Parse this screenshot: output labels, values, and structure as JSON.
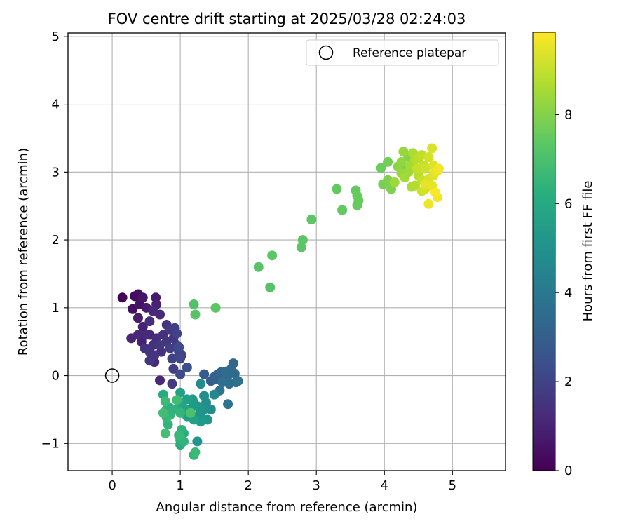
{
  "chart_data": {
    "type": "scatter",
    "title": "FOV centre drift starting at 2025/03/28 02:24:03",
    "xlabel": "Angular distance from reference (arcmin)",
    "ylabel": "Rotation from reference (arcmin)",
    "xlim": [
      -0.65,
      5.78
    ],
    "ylim": [
      -1.4,
      5.05
    ],
    "xticks": [
      "0",
      "1",
      "2",
      "3",
      "4",
      "5"
    ],
    "yticks": [
      "−1",
      "0",
      "1",
      "2",
      "3",
      "4",
      "5"
    ],
    "grid": true,
    "legend": {
      "position": "top-right",
      "entries": [
        "Reference platepar"
      ]
    },
    "reference_point": {
      "x": 0,
      "y": 0
    },
    "colorbar": {
      "label": "Hours from first FF file",
      "colormap": "viridis",
      "range": [
        0,
        9.85
      ],
      "ticks": [
        "0",
        "2",
        "4",
        "6",
        "8"
      ]
    },
    "points": [
      {
        "x": 0.15,
        "y": 1.15,
        "h": 0.1
      },
      {
        "x": 0.33,
        "y": 1.17,
        "h": 0.3
      },
      {
        "x": 0.38,
        "y": 1.2,
        "h": 0.4
      },
      {
        "x": 0.3,
        "y": 0.98,
        "h": 0.4
      },
      {
        "x": 0.4,
        "y": 1.05,
        "h": 0.5
      },
      {
        "x": 0.45,
        "y": 1.15,
        "h": 0.6
      },
      {
        "x": 0.5,
        "y": 1.0,
        "h": 0.7
      },
      {
        "x": 0.38,
        "y": 0.85,
        "h": 0.8
      },
      {
        "x": 0.45,
        "y": 0.72,
        "h": 0.9
      },
      {
        "x": 0.55,
        "y": 0.6,
        "h": 1.0
      },
      {
        "x": 0.6,
        "y": 0.95,
        "h": 1.1
      },
      {
        "x": 0.65,
        "y": 1.05,
        "h": 0.9
      },
      {
        "x": 0.64,
        "y": 1.15,
        "h": 0.7
      },
      {
        "x": 0.7,
        "y": 0.9,
        "h": 1.2
      },
      {
        "x": 0.55,
        "y": 0.8,
        "h": 1.3
      },
      {
        "x": 0.5,
        "y": 0.6,
        "h": 1.2
      },
      {
        "x": 0.48,
        "y": 0.4,
        "h": 1.4
      },
      {
        "x": 0.55,
        "y": 0.35,
        "h": 1.5
      },
      {
        "x": 0.6,
        "y": 0.45,
        "h": 1.4
      },
      {
        "x": 0.55,
        "y": 0.22,
        "h": 1.6
      },
      {
        "x": 0.62,
        "y": 0.3,
        "h": 1.5
      },
      {
        "x": 0.7,
        "y": 0.45,
        "h": 1.6
      },
      {
        "x": 0.65,
        "y": 0.55,
        "h": 1.3
      },
      {
        "x": 0.75,
        "y": 0.6,
        "h": 1.4
      },
      {
        "x": 0.8,
        "y": 0.75,
        "h": 1.5
      },
      {
        "x": 0.85,
        "y": 0.68,
        "h": 1.7
      },
      {
        "x": 0.9,
        "y": 0.55,
        "h": 1.6
      },
      {
        "x": 0.92,
        "y": 0.7,
        "h": 1.8
      },
      {
        "x": 0.95,
        "y": 0.62,
        "h": 1.9
      },
      {
        "x": 0.85,
        "y": 0.4,
        "h": 1.8
      },
      {
        "x": 0.88,
        "y": 0.25,
        "h": 1.9
      },
      {
        "x": 0.95,
        "y": 0.45,
        "h": 1.7
      },
      {
        "x": 0.98,
        "y": 0.35,
        "h": 2.0
      },
      {
        "x": 1.0,
        "y": 0.25,
        "h": 2.1
      },
      {
        "x": 1.02,
        "y": 0.3,
        "h": 1.9
      },
      {
        "x": 0.8,
        "y": 0.5,
        "h": 1.6
      },
      {
        "x": 0.72,
        "y": 0.35,
        "h": 1.4
      },
      {
        "x": 0.62,
        "y": 0.2,
        "h": 1.2
      },
      {
        "x": 0.28,
        "y": 0.55,
        "h": 1.0
      },
      {
        "x": 0.38,
        "y": 0.6,
        "h": 1.1
      },
      {
        "x": 0.43,
        "y": 0.5,
        "h": 0.9
      },
      {
        "x": 0.9,
        "y": 0.1,
        "h": 1.8
      },
      {
        "x": 0.7,
        "y": -0.07,
        "h": 1.1
      },
      {
        "x": 0.88,
        "y": -0.12,
        "h": 1.7
      },
      {
        "x": 0.98,
        "y": 0.42,
        "h": 2.2
      },
      {
        "x": 1.0,
        "y": 0.02,
        "h": 2.2
      },
      {
        "x": 1.1,
        "y": 0.12,
        "h": 2.4
      },
      {
        "x": 1.35,
        "y": 0.02,
        "h": 2.8
      },
      {
        "x": 1.45,
        "y": -0.08,
        "h": 2.9
      },
      {
        "x": 1.5,
        "y": -0.02,
        "h": 3.0
      },
      {
        "x": 1.55,
        "y": 0.02,
        "h": 3.1
      },
      {
        "x": 1.6,
        "y": 0.05,
        "h": 3.2
      },
      {
        "x": 1.65,
        "y": -0.05,
        "h": 3.3
      },
      {
        "x": 1.7,
        "y": 0.0,
        "h": 3.4
      },
      {
        "x": 1.72,
        "y": -0.12,
        "h": 3.5
      },
      {
        "x": 1.75,
        "y": 0.1,
        "h": 3.3
      },
      {
        "x": 1.78,
        "y": 0.18,
        "h": 3.2
      },
      {
        "x": 1.8,
        "y": 0.03,
        "h": 3.4
      },
      {
        "x": 1.82,
        "y": -0.1,
        "h": 3.5
      },
      {
        "x": 1.85,
        "y": -0.08,
        "h": 3.6
      },
      {
        "x": 1.7,
        "y": -0.42,
        "h": 3.8
      },
      {
        "x": 1.58,
        "y": -0.22,
        "h": 3.7
      },
      {
        "x": 1.62,
        "y": -0.1,
        "h": 3.6
      },
      {
        "x": 1.67,
        "y": 0.06,
        "h": 3.5
      },
      {
        "x": 1.52,
        "y": -0.05,
        "h": 3.1
      },
      {
        "x": 1.3,
        "y": -0.12,
        "h": 4.7
      },
      {
        "x": 1.35,
        "y": -0.3,
        "h": 4.8
      },
      {
        "x": 1.38,
        "y": -0.4,
        "h": 4.9
      },
      {
        "x": 1.35,
        "y": -0.5,
        "h": 5.0
      },
      {
        "x": 1.3,
        "y": -0.55,
        "h": 5.1
      },
      {
        "x": 1.25,
        "y": -0.45,
        "h": 5.2
      },
      {
        "x": 1.2,
        "y": -0.4,
        "h": 5.3
      },
      {
        "x": 1.15,
        "y": -0.5,
        "h": 5.4
      },
      {
        "x": 1.1,
        "y": -0.6,
        "h": 5.5
      },
      {
        "x": 1.2,
        "y": -0.65,
        "h": 5.6
      },
      {
        "x": 1.3,
        "y": -0.68,
        "h": 5.3
      },
      {
        "x": 1.4,
        "y": -0.65,
        "h": 5.2
      },
      {
        "x": 1.45,
        "y": -0.5,
        "h": 4.8
      },
      {
        "x": 1.1,
        "y": -0.35,
        "h": 5.5
      },
      {
        "x": 1.05,
        "y": -0.48,
        "h": 5.7
      },
      {
        "x": 1.0,
        "y": -0.4,
        "h": 5.8
      },
      {
        "x": 0.95,
        "y": -0.5,
        "h": 5.9
      },
      {
        "x": 0.85,
        "y": -0.48,
        "h": 5.7
      },
      {
        "x": 1.0,
        "y": -0.25,
        "h": 5.6
      },
      {
        "x": 1.5,
        "y": -0.28,
        "h": 4.6
      },
      {
        "x": 1.25,
        "y": -0.97,
        "h": 5.1
      },
      {
        "x": 1.22,
        "y": -0.6,
        "h": 5.0
      },
      {
        "x": 1.18,
        "y": -0.35,
        "h": 5.4
      },
      {
        "x": 0.75,
        "y": -0.28,
        "h": 6.0
      },
      {
        "x": 0.8,
        "y": -0.5,
        "h": 6.2
      },
      {
        "x": 0.85,
        "y": -0.58,
        "h": 6.4
      },
      {
        "x": 0.8,
        "y": -0.62,
        "h": 6.6
      },
      {
        "x": 0.9,
        "y": -0.5,
        "h": 6.3
      },
      {
        "x": 0.95,
        "y": -0.36,
        "h": 6.8
      },
      {
        "x": 1.0,
        "y": -0.55,
        "h": 6.5
      },
      {
        "x": 0.78,
        "y": -0.38,
        "h": 6.7
      },
      {
        "x": 0.82,
        "y": -0.72,
        "h": 6.4
      },
      {
        "x": 0.78,
        "y": -0.85,
        "h": 6.9
      },
      {
        "x": 0.98,
        "y": -0.88,
        "h": 6.6
      },
      {
        "x": 1.02,
        "y": -0.8,
        "h": 6.3
      },
      {
        "x": 1.0,
        "y": -0.95,
        "h": 6.2
      },
      {
        "x": 1.05,
        "y": -0.85,
        "h": 6.1
      },
      {
        "x": 1.0,
        "y": -1.02,
        "h": 6.0
      },
      {
        "x": 1.05,
        "y": -0.97,
        "h": 6.4
      },
      {
        "x": 1.2,
        "y": -1.17,
        "h": 6.5
      },
      {
        "x": 1.22,
        "y": -1.13,
        "h": 6.7
      },
      {
        "x": 1.15,
        "y": -0.55,
        "h": 7.0
      },
      {
        "x": 0.75,
        "y": -0.55,
        "h": 6.8
      },
      {
        "x": 1.2,
        "y": 1.05,
        "h": 7.1
      },
      {
        "x": 1.22,
        "y": 0.9,
        "h": 7.2
      },
      {
        "x": 1.52,
        "y": 1.0,
        "h": 7.3
      },
      {
        "x": 2.15,
        "y": 1.6,
        "h": 7.2
      },
      {
        "x": 2.32,
        "y": 1.3,
        "h": 7.2
      },
      {
        "x": 2.35,
        "y": 1.77,
        "h": 7.3
      },
      {
        "x": 2.78,
        "y": 1.89,
        "h": 7.3
      },
      {
        "x": 2.8,
        "y": 2.0,
        "h": 7.3
      },
      {
        "x": 2.93,
        "y": 2.3,
        "h": 7.3
      },
      {
        "x": 3.3,
        "y": 2.75,
        "h": 7.4
      },
      {
        "x": 3.38,
        "y": 2.44,
        "h": 7.4
      },
      {
        "x": 3.58,
        "y": 2.73,
        "h": 7.4
      },
      {
        "x": 3.6,
        "y": 2.65,
        "h": 7.5
      },
      {
        "x": 3.62,
        "y": 2.58,
        "h": 7.5
      },
      {
        "x": 3.6,
        "y": 2.51,
        "h": 7.5
      },
      {
        "x": 3.95,
        "y": 3.06,
        "h": 7.6
      },
      {
        "x": 3.98,
        "y": 2.82,
        "h": 7.8
      },
      {
        "x": 4.05,
        "y": 2.88,
        "h": 7.9
      },
      {
        "x": 4.05,
        "y": 3.15,
        "h": 7.7
      },
      {
        "x": 4.1,
        "y": 2.75,
        "h": 7.9
      },
      {
        "x": 4.15,
        "y": 2.85,
        "h": 8.4
      },
      {
        "x": 4.2,
        "y": 3.08,
        "h": 8.1
      },
      {
        "x": 4.25,
        "y": 3.15,
        "h": 8.2
      },
      {
        "x": 4.28,
        "y": 3.3,
        "h": 8.3
      },
      {
        "x": 4.3,
        "y": 3.05,
        "h": 7.8
      },
      {
        "x": 4.35,
        "y": 3.22,
        "h": 8.0
      },
      {
        "x": 4.38,
        "y": 3.1,
        "h": 8.5
      },
      {
        "x": 4.42,
        "y": 3.28,
        "h": 8.6
      },
      {
        "x": 4.45,
        "y": 3.18,
        "h": 8.7
      },
      {
        "x": 4.5,
        "y": 3.2,
        "h": 8.8
      },
      {
        "x": 4.55,
        "y": 3.25,
        "h": 8.9
      },
      {
        "x": 4.58,
        "y": 3.1,
        "h": 9.0
      },
      {
        "x": 4.6,
        "y": 3.05,
        "h": 9.1
      },
      {
        "x": 4.65,
        "y": 3.22,
        "h": 9.2
      },
      {
        "x": 4.7,
        "y": 3.35,
        "h": 9.3
      },
      {
        "x": 4.72,
        "y": 3.1,
        "h": 9.4
      },
      {
        "x": 4.75,
        "y": 3.0,
        "h": 9.5
      },
      {
        "x": 4.78,
        "y": 3.02,
        "h": 9.6
      },
      {
        "x": 4.8,
        "y": 3.05,
        "h": 9.7
      },
      {
        "x": 4.72,
        "y": 2.95,
        "h": 9.4
      },
      {
        "x": 4.65,
        "y": 2.9,
        "h": 9.3
      },
      {
        "x": 4.6,
        "y": 2.82,
        "h": 9.5
      },
      {
        "x": 4.55,
        "y": 2.88,
        "h": 9.0
      },
      {
        "x": 4.5,
        "y": 2.95,
        "h": 8.8
      },
      {
        "x": 4.45,
        "y": 2.8,
        "h": 8.7
      },
      {
        "x": 4.4,
        "y": 2.78,
        "h": 8.6
      },
      {
        "x": 4.55,
        "y": 2.72,
        "h": 9.1
      },
      {
        "x": 4.6,
        "y": 2.75,
        "h": 9.2
      },
      {
        "x": 4.65,
        "y": 2.53,
        "h": 9.6
      },
      {
        "x": 4.75,
        "y": 2.7,
        "h": 9.8
      },
      {
        "x": 4.78,
        "y": 2.63,
        "h": 9.7
      },
      {
        "x": 4.7,
        "y": 2.8,
        "h": 9.5
      },
      {
        "x": 4.35,
        "y": 3.0,
        "h": 8.4
      },
      {
        "x": 4.25,
        "y": 2.98,
        "h": 8.3
      },
      {
        "x": 4.3,
        "y": 2.92,
        "h": 8.5
      },
      {
        "x": 4.48,
        "y": 3.05,
        "h": 9.0
      }
    ]
  }
}
